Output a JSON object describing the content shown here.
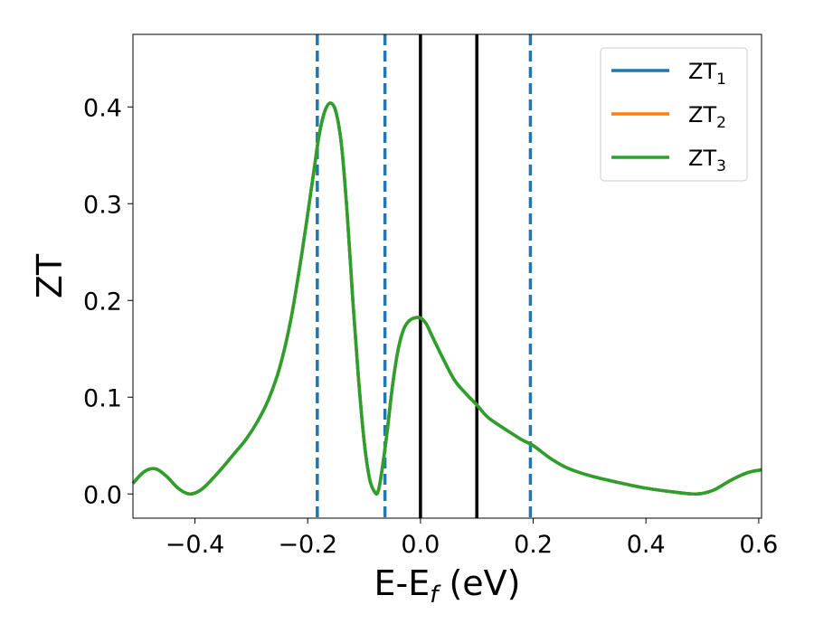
{
  "chart_data": {
    "type": "line",
    "xlabel": "E-E",
    "xlabel_sub": "f",
    "xlabel_unit": " (eV)",
    "ylabel": "ZT",
    "xlim": [
      -0.51,
      0.605
    ],
    "ylim": [
      -0.025,
      0.475
    ],
    "xticks": [
      -0.4,
      -0.2,
      0.0,
      0.2,
      0.4,
      0.6
    ],
    "xtick_labels": [
      "−0.4",
      "−0.2",
      "0.0",
      "0.2",
      "0.4",
      "0.6"
    ],
    "yticks": [
      0.0,
      0.1,
      0.2,
      0.3,
      0.4
    ],
    "ytick_labels": [
      "0.0",
      "0.1",
      "0.2",
      "0.3",
      "0.4"
    ],
    "grid": false,
    "legend_position": "top-right",
    "series": [
      {
        "name": "ZT",
        "sub": "1",
        "color": "#1f77b4"
      },
      {
        "name": "ZT",
        "sub": "2",
        "color": "#ff7f0e"
      },
      {
        "name": "ZT",
        "sub": "3",
        "color": "#2ca02c"
      }
    ],
    "x": [
      -0.51,
      -0.49,
      -0.47,
      -0.45,
      -0.43,
      -0.41,
      -0.39,
      -0.37,
      -0.35,
      -0.33,
      -0.31,
      -0.29,
      -0.27,
      -0.25,
      -0.23,
      -0.21,
      -0.19,
      -0.18,
      -0.17,
      -0.16,
      -0.15,
      -0.14,
      -0.13,
      -0.12,
      -0.11,
      -0.1,
      -0.09,
      -0.08,
      -0.075,
      -0.07,
      -0.06,
      -0.05,
      -0.04,
      -0.03,
      -0.02,
      -0.01,
      0.0,
      0.01,
      0.02,
      0.04,
      0.06,
      0.08,
      0.1,
      0.12,
      0.15,
      0.18,
      0.2,
      0.23,
      0.26,
      0.3,
      0.35,
      0.4,
      0.45,
      0.49,
      0.52,
      0.55,
      0.58,
      0.605
    ],
    "y": [
      0.011,
      0.023,
      0.026,
      0.018,
      0.006,
      0.0,
      0.004,
      0.015,
      0.028,
      0.042,
      0.056,
      0.074,
      0.097,
      0.13,
      0.18,
      0.25,
      0.33,
      0.37,
      0.395,
      0.404,
      0.395,
      0.36,
      0.29,
      0.2,
      0.12,
      0.055,
      0.015,
      0.001,
      0.003,
      0.018,
      0.06,
      0.11,
      0.148,
      0.17,
      0.179,
      0.182,
      0.182,
      0.176,
      0.164,
      0.14,
      0.118,
      0.104,
      0.092,
      0.079,
      0.067,
      0.056,
      0.05,
      0.037,
      0.027,
      0.019,
      0.012,
      0.006,
      0.002,
      0.0,
      0.004,
      0.014,
      0.022,
      0.025
    ],
    "vlines_dashed": [
      -0.183,
      -0.063,
      0.195
    ],
    "vlines_solid": [
      0.0,
      0.1
    ],
    "dashed_color": "#1f77b4",
    "solid_color": "#000000"
  }
}
